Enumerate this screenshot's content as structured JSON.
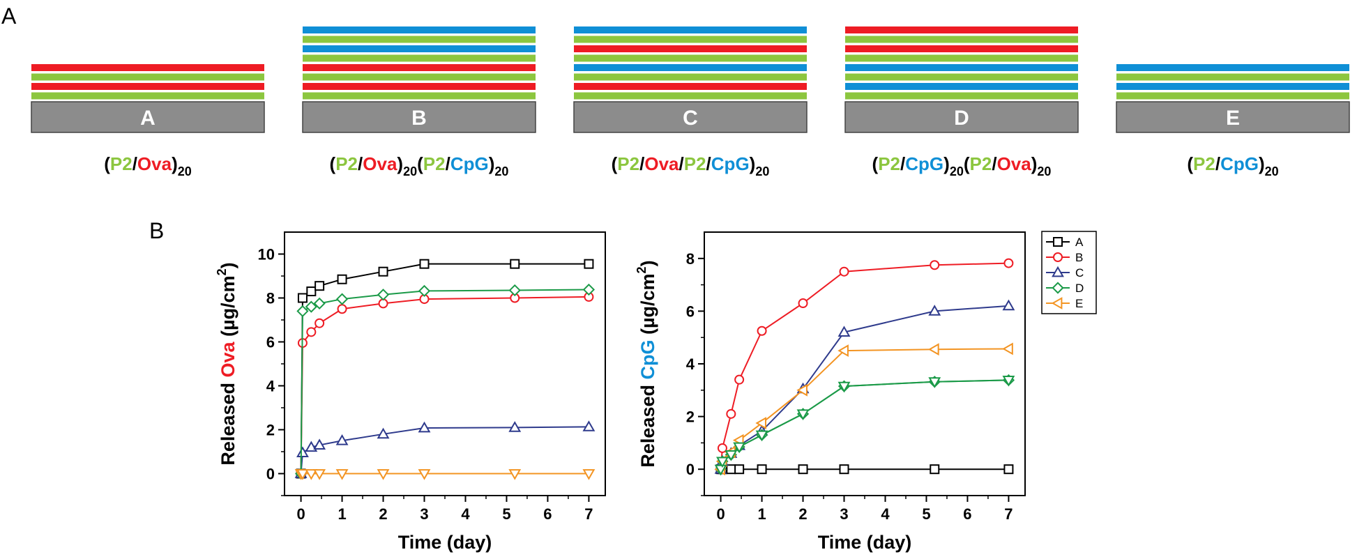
{
  "figure": {
    "panel_a_letter": "A",
    "panel_b_letter": "B"
  },
  "colors": {
    "P2": "#8cc63f",
    "Ova": "#ee1c24",
    "CpG": "#0f8fd6",
    "substrate": "#8c8c8c",
    "black": "#000000"
  },
  "schematics": [
    {
      "letter": "A",
      "layers": [
        "Ova",
        "P2",
        "Ova",
        "P2"
      ],
      "formula": [
        {
          "t": "(",
          "c": "black"
        },
        {
          "t": "P2",
          "c": "P2"
        },
        {
          "t": "/",
          "c": "black"
        },
        {
          "t": "Ova",
          "c": "Ova"
        },
        {
          "t": ")",
          "c": "black"
        },
        {
          "t": "20",
          "c": "black",
          "sub": true
        }
      ]
    },
    {
      "letter": "B",
      "layers": [
        "CpG",
        "P2",
        "CpG",
        "P2",
        "Ova",
        "P2",
        "Ova",
        "P2"
      ],
      "formula": [
        {
          "t": "(",
          "c": "black"
        },
        {
          "t": "P2",
          "c": "P2"
        },
        {
          "t": "/",
          "c": "black"
        },
        {
          "t": "Ova",
          "c": "Ova"
        },
        {
          "t": ")",
          "c": "black"
        },
        {
          "t": "20",
          "c": "black",
          "sub": true
        },
        {
          "t": "(",
          "c": "black"
        },
        {
          "t": "P2",
          "c": "P2"
        },
        {
          "t": "/",
          "c": "black"
        },
        {
          "t": "CpG",
          "c": "CpG"
        },
        {
          "t": ")",
          "c": "black"
        },
        {
          "t": "20",
          "c": "black",
          "sub": true
        }
      ]
    },
    {
      "letter": "C",
      "layers": [
        "CpG",
        "P2",
        "Ova",
        "P2",
        "CpG",
        "P2",
        "Ova",
        "P2"
      ],
      "formula": [
        {
          "t": "(",
          "c": "black"
        },
        {
          "t": "P2",
          "c": "P2"
        },
        {
          "t": "/",
          "c": "black"
        },
        {
          "t": "Ova",
          "c": "Ova"
        },
        {
          "t": "/",
          "c": "black"
        },
        {
          "t": "P2",
          "c": "P2"
        },
        {
          "t": "/",
          "c": "black"
        },
        {
          "t": "CpG",
          "c": "CpG"
        },
        {
          "t": ")",
          "c": "black"
        },
        {
          "t": "20",
          "c": "black",
          "sub": true
        }
      ]
    },
    {
      "letter": "D",
      "layers": [
        "Ova",
        "P2",
        "Ova",
        "P2",
        "CpG",
        "P2",
        "CpG",
        "P2"
      ],
      "formula": [
        {
          "t": "(",
          "c": "black"
        },
        {
          "t": "P2",
          "c": "P2"
        },
        {
          "t": "/",
          "c": "black"
        },
        {
          "t": "CpG",
          "c": "CpG"
        },
        {
          "t": ")",
          "c": "black"
        },
        {
          "t": "20",
          "c": "black",
          "sub": true
        },
        {
          "t": "(",
          "c": "black"
        },
        {
          "t": "P2",
          "c": "P2"
        },
        {
          "t": "/",
          "c": "black"
        },
        {
          "t": "Ova",
          "c": "Ova"
        },
        {
          "t": ")",
          "c": "black"
        },
        {
          "t": "20",
          "c": "black",
          "sub": true
        }
      ]
    },
    {
      "letter": "E",
      "layers": [
        "CpG",
        "P2",
        "CpG",
        "P2"
      ],
      "formula": [
        {
          "t": "(",
          "c": "black"
        },
        {
          "t": "P2",
          "c": "P2"
        },
        {
          "t": "/",
          "c": "black"
        },
        {
          "t": "CpG",
          "c": "CpG"
        },
        {
          "t": ")",
          "c": "black"
        },
        {
          "t": "20",
          "c": "black",
          "sub": true
        }
      ]
    }
  ],
  "chart_data": [
    {
      "type": "line",
      "title": "",
      "xlabel": "Time (day)",
      "ylabel_parts": [
        {
          "t": "Released ",
          "c": "black"
        },
        {
          "t": "Ova",
          "c": "Ova"
        },
        {
          "t": " (µg/cm",
          "c": "black"
        },
        {
          "t": "2",
          "c": "black",
          "sup": true
        },
        {
          "t": ")",
          "c": "black"
        }
      ],
      "xlim": [
        -0.4,
        7.4
      ],
      "ylim": [
        -1,
        11
      ],
      "xticks": [
        0,
        1,
        2,
        3,
        4,
        5,
        6,
        7
      ],
      "yticks": [
        0,
        2,
        4,
        6,
        8,
        10
      ],
      "series": [
        {
          "name": "A",
          "color": "#000000",
          "marker": "square",
          "x": [
            0,
            0.04,
            0.25,
            0.45,
            1,
            2,
            3,
            5.2,
            7
          ],
          "y": [
            0,
            8.0,
            8.3,
            8.55,
            8.85,
            9.2,
            9.55,
            9.55,
            9.55
          ]
        },
        {
          "name": "B",
          "color": "#ee1c24",
          "marker": "circle",
          "x": [
            0,
            0.04,
            0.25,
            0.45,
            1,
            2,
            3,
            5.2,
            7
          ],
          "y": [
            0,
            5.95,
            6.45,
            6.85,
            7.5,
            7.75,
            7.95,
            8.0,
            8.05
          ]
        },
        {
          "name": "C",
          "color": "#2e3a8c",
          "marker": "triangle-up",
          "x": [
            0,
            0.04,
            0.25,
            0.45,
            1,
            2,
            3,
            5.2,
            7
          ],
          "y": [
            0,
            0.95,
            1.2,
            1.3,
            1.5,
            1.8,
            2.08,
            2.1,
            2.13
          ]
        },
        {
          "name": "D",
          "color": "#1b9a48",
          "marker": "diamond",
          "x": [
            0,
            0.04,
            0.25,
            0.45,
            1,
            2,
            3,
            5.2,
            7
          ],
          "y": [
            0,
            7.4,
            7.6,
            7.75,
            7.95,
            8.15,
            8.32,
            8.35,
            8.38
          ]
        },
        {
          "name": "E",
          "color": "#f39422",
          "marker": "triangle-down",
          "x": [
            0,
            0.04,
            0.25,
            0.45,
            1,
            2,
            3,
            5.2,
            7
          ],
          "y": [
            0,
            0,
            0,
            0,
            0,
            0,
            0,
            0,
            0
          ]
        }
      ]
    },
    {
      "type": "line",
      "title": "",
      "xlabel": "Time (day)",
      "ylabel_parts": [
        {
          "t": "Released ",
          "c": "black"
        },
        {
          "t": "CpG",
          "c": "CpG"
        },
        {
          "t": " (µg/cm",
          "c": "black"
        },
        {
          "t": "2",
          "c": "black",
          "sup": true
        },
        {
          "t": ")",
          "c": "black"
        }
      ],
      "xlim": [
        -0.4,
        7.4
      ],
      "ylim": [
        -1,
        9
      ],
      "xticks": [
        0,
        1,
        2,
        3,
        4,
        5,
        6,
        7
      ],
      "yticks": [
        0,
        2,
        4,
        6,
        8
      ],
      "legend": {
        "placement": "top-right-outside",
        "entries": [
          "A",
          "B",
          "C",
          "D",
          "E"
        ]
      },
      "series": [
        {
          "name": "A",
          "color": "#000000",
          "marker": "square",
          "x": [
            0,
            0.04,
            0.25,
            0.45,
            1,
            2,
            3,
            5.2,
            7
          ],
          "y": [
            0,
            0,
            0,
            0,
            0,
            0,
            0,
            0,
            0
          ]
        },
        {
          "name": "B",
          "color": "#ee1c24",
          "marker": "circle",
          "x": [
            0,
            0.04,
            0.25,
            0.45,
            1,
            2,
            3,
            5.2,
            7
          ],
          "y": [
            0,
            0.8,
            2.1,
            3.4,
            5.25,
            6.3,
            7.5,
            7.75,
            7.82
          ]
        },
        {
          "name": "C",
          "color": "#2e3a8c",
          "marker": "triangle-up",
          "x": [
            0,
            0.04,
            0.25,
            0.45,
            1,
            2,
            3,
            5.2,
            7
          ],
          "y": [
            0,
            0.3,
            0.6,
            0.9,
            1.45,
            3.05,
            5.2,
            6.0,
            6.2
          ]
        },
        {
          "name": "D",
          "color": "#1b9a48",
          "marker": "diamond",
          "x": [
            0,
            0.04,
            0.25,
            0.45,
            1,
            2,
            3,
            5.2,
            7
          ],
          "y": [
            0,
            0.3,
            0.55,
            0.85,
            1.3,
            2.1,
            3.15,
            3.32,
            3.38
          ]
        },
        {
          "name": "E",
          "color": "#f39422",
          "marker": "triangle-left",
          "x": [
            0,
            0.04,
            0.25,
            0.45,
            1,
            2,
            3,
            5.2,
            7
          ],
          "y": [
            0,
            0.3,
            0.65,
            1.1,
            1.75,
            3.0,
            4.5,
            4.55,
            4.57
          ]
        },
        {
          "name": "D-down",
          "legend": false,
          "color": "#1b9a48",
          "marker": "triangle-down",
          "x": [
            0,
            0.04,
            0.25,
            0.45,
            1,
            2,
            3,
            5.2,
            7
          ],
          "y": [
            0,
            0.3,
            0.55,
            0.85,
            1.3,
            2.1,
            3.15,
            3.32,
            3.38
          ]
        }
      ]
    }
  ]
}
